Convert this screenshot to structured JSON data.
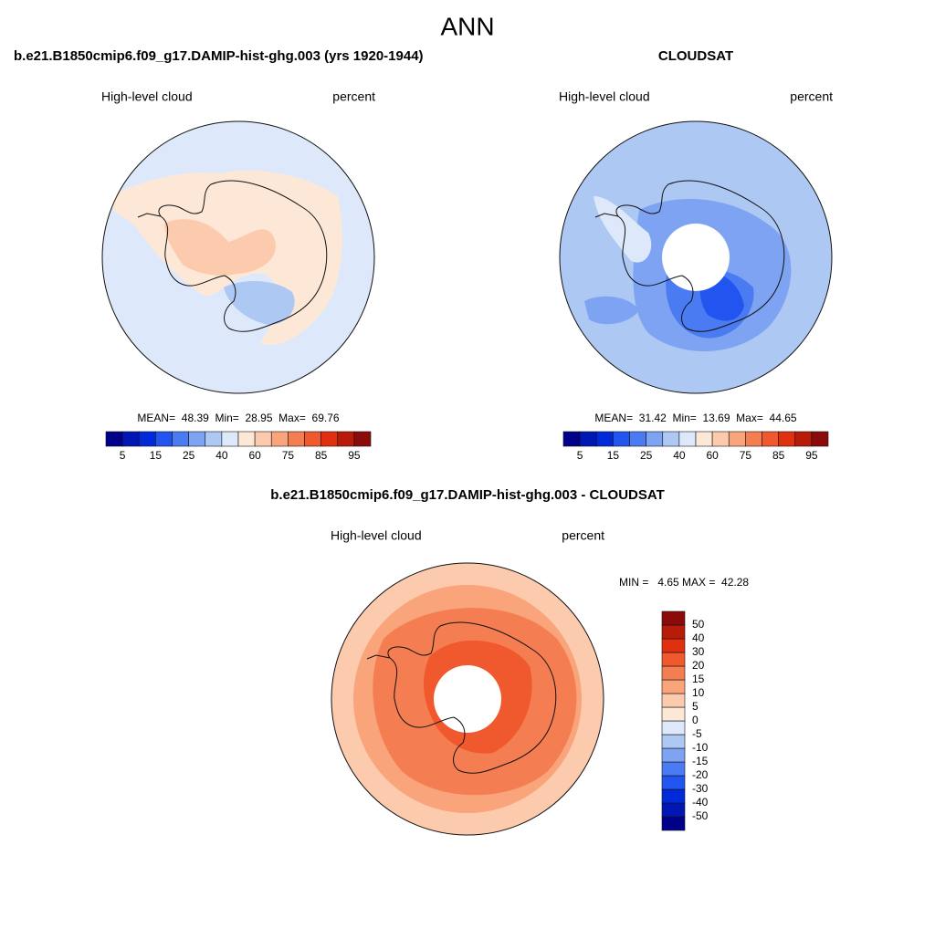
{
  "figure_title": "ANN",
  "panels": [
    {
      "title": "b.e21.B1850cmip6.f09_g17.DAMIP-hist-ghg.003 (yrs 1920-1944)",
      "variable": "High-level cloud",
      "units": "percent",
      "stats": "MEAN=  48.39  Min=  28.95  Max=  69.76",
      "colorbar": {
        "colors": [
          "#00008a",
          "#0017b5",
          "#0029d9",
          "#2255f0",
          "#4a7bf2",
          "#7ea3f2",
          "#aec8f4",
          "#dde9fb",
          "#fde8d8",
          "#fccbae",
          "#f9a47b",
          "#f57d52",
          "#f0582e",
          "#e03010",
          "#b81c08",
          "#8b0a0a"
        ],
        "labels": [
          "5",
          "15",
          "25",
          "40",
          "60",
          "75",
          "85",
          "95"
        ]
      }
    },
    {
      "title": "CLOUDSAT",
      "variable": "High-level cloud",
      "units": "percent",
      "stats": "MEAN=  31.42  Min=  13.69  Max=  44.65",
      "colorbar": {
        "colors": [
          "#00008a",
          "#0017b5",
          "#0029d9",
          "#2255f0",
          "#4a7bf2",
          "#7ea3f2",
          "#aec8f4",
          "#dde9fb",
          "#fde8d8",
          "#fccbae",
          "#f9a47b",
          "#f57d52",
          "#f0582e",
          "#e03010",
          "#b81c08",
          "#8b0a0a"
        ],
        "labels": [
          "5",
          "15",
          "25",
          "40",
          "60",
          "75",
          "85",
          "95"
        ]
      }
    }
  ],
  "difference": {
    "title": "b.e21.B1850cmip6.f09_g17.DAMIP-hist-ghg.003 - CLOUDSAT",
    "variable": "High-level cloud",
    "units": "percent",
    "stats": "MIN =   4.65 MAX =  42.28",
    "colorbar": {
      "colors": [
        "#00008a",
        "#0017b5",
        "#0029d9",
        "#2255f0",
        "#4a7bf2",
        "#7ea3f2",
        "#aec8f4",
        "#dde9fb",
        "#fde8d8",
        "#fccbae",
        "#f9a47b",
        "#f57d52",
        "#f0582e",
        "#e03010",
        "#b81c08",
        "#8b0a0a"
      ],
      "labels": [
        "-50",
        "-40",
        "-30",
        "-20",
        "-15",
        "-10",
        "-5",
        "0",
        "5",
        "10",
        "15",
        "20",
        "30",
        "40",
        "50"
      ]
    }
  }
}
